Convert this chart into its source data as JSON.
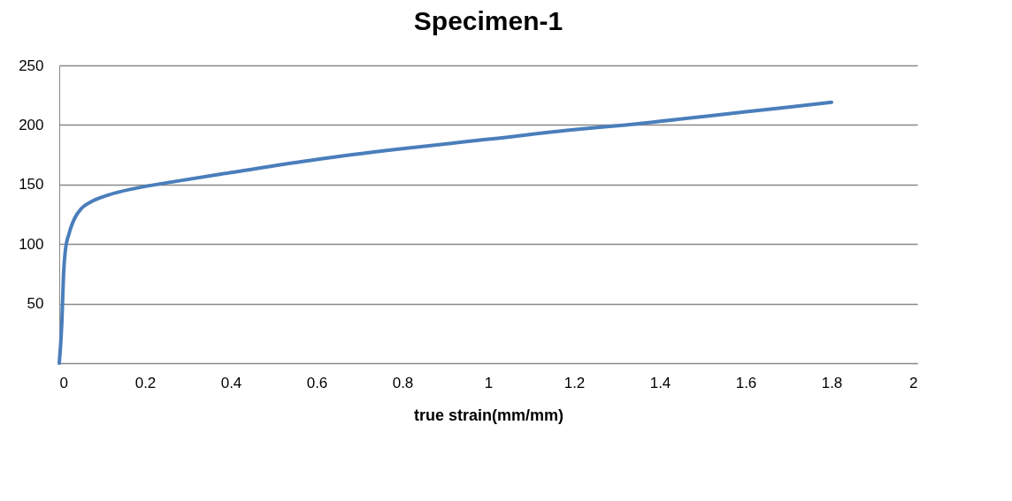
{
  "chart_data": {
    "type": "line",
    "title": "Specimen-1",
    "xlabel": "true strain(mm/mm)",
    "x": [
      0,
      0.006,
      0.01,
      0.014,
      0.023,
      0.035,
      0.052,
      0.072,
      0.113,
      0.18,
      0.26,
      0.4,
      0.6,
      0.8,
      1.0,
      1.2,
      1.32,
      1.4,
      1.6,
      1.8
    ],
    "series": [
      {
        "color": "#4a7ebb",
        "values": [
          0,
          34,
          75,
          94,
          109,
          121,
          130,
          135,
          141,
          147,
          152,
          160,
          171,
          180,
          188,
          196,
          200,
          203,
          211,
          219
        ]
      }
    ],
    "xlim": [
      0,
      2
    ],
    "xticks": [
      0,
      0.2,
      0.4,
      0.6,
      0.8,
      1,
      1.2,
      1.4,
      1.6,
      1.8,
      2
    ],
    "ylim": [
      0,
      250
    ],
    "yticks": [
      {
        "value": 0,
        "label": null
      },
      50,
      100,
      150,
      200,
      250
    ],
    "grid": "y",
    "marker": "none",
    "line_style": "solid"
  }
}
